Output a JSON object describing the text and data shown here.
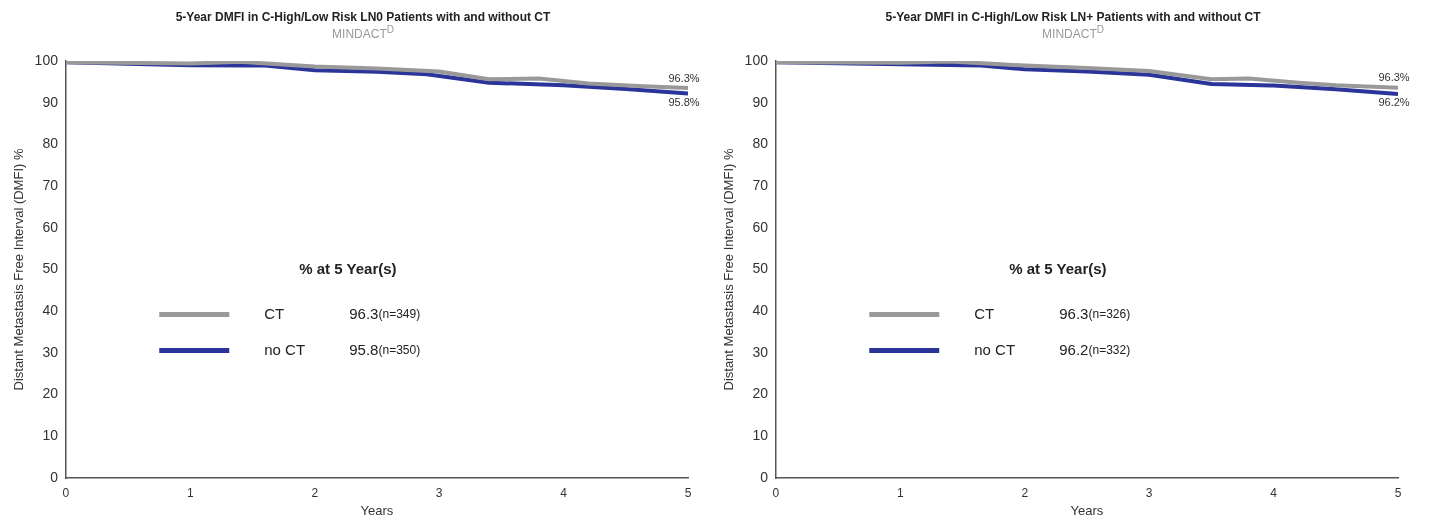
{
  "chart_data": [
    {
      "type": "line",
      "title": "5-Year DMFI in C-High/Low Risk LN0 Patients with and without CT",
      "subtitle": "MINDACT$^{D}$",
      "xlabel": "Years",
      "ylabel": "Distant Metastasis Free Interval (DMFI) %",
      "legend_title": "% at 5 Year(s)",
      "legend": "bottom left",
      "grid": false,
      "marker": "none",
      "xlim": [
        0,
        5
      ],
      "xticks": [
        0,
        1,
        2,
        3,
        4,
        5
      ],
      "ylim": [
        0,
        100
      ],
      "yticks": [
        0,
        10,
        20,
        30,
        40,
        50,
        60,
        70,
        80,
        90,
        100
      ],
      "series": [
        {
          "name": "CT",
          "color": "#999999",
          "x": [
            0,
            1,
            1.4,
            2,
            2.5,
            3,
            3.4,
            3.8,
            4.2,
            4.6,
            5
          ],
          "values": [
            99.7,
            99.4,
            99.8,
            98.7,
            98.2,
            97.5,
            95.6,
            95.8,
            94.6,
            94,
            93.5
          ]
        },
        {
          "name": "no CT",
          "color": "#2b3499",
          "x": [
            0,
            1,
            1.6,
            2,
            2.5,
            2.9,
            3.4,
            4,
            4.5,
            5
          ],
          "values": [
            99.7,
            99,
            98.9,
            97.8,
            97.4,
            96.8,
            94.8,
            94.2,
            93.3,
            92.2
          ]
        }
      ],
      "annotations": [
        "96.3%",
        "95.8%",
        "96.3(n=349)",
        "95.8(n=350)"
      ]
    },
    {
      "type": "line",
      "title": "5-Year DMFI in C-High/Low Risk LN+ Patients with and without CT",
      "subtitle": "MINDACT$^{D}$",
      "xlabel": "Years",
      "ylabel": "Distant Metastasis Free Interval (DMFI) %",
      "legend_title": "% at 5 Year(s)",
      "legend": "bottom left",
      "grid": false,
      "marker": "none",
      "xlim": [
        0,
        5
      ],
      "xticks": [
        0,
        1,
        2,
        3,
        4,
        5
      ],
      "ylim": [
        0,
        100
      ],
      "yticks": [
        0,
        10,
        20,
        30,
        40,
        50,
        60,
        70,
        80,
        90,
        100
      ],
      "series": [
        {
          "name": "CT",
          "color": "#999999",
          "x": [
            0,
            1,
            1.4,
            2,
            2.5,
            3,
            3.5,
            3.8,
            4.2,
            4.5,
            5
          ],
          "values": [
            99.7,
            99.6,
            99.9,
            98.9,
            98.3,
            97.6,
            95.6,
            95.8,
            94.8,
            94.2,
            93.6
          ]
        },
        {
          "name": "no CT",
          "color": "#2b3499",
          "x": [
            0,
            1,
            1.65,
            2,
            2.5,
            3,
            3.5,
            4,
            4.5,
            5
          ],
          "values": [
            99.7,
            99.2,
            98.9,
            98,
            97.5,
            96.7,
            94.5,
            94.1,
            93.2,
            92.1
          ]
        }
      ],
      "annotations": [
        "96.3%",
        "96.2%",
        "96.3(n=326)",
        "96.2(n=332)"
      ]
    }
  ]
}
